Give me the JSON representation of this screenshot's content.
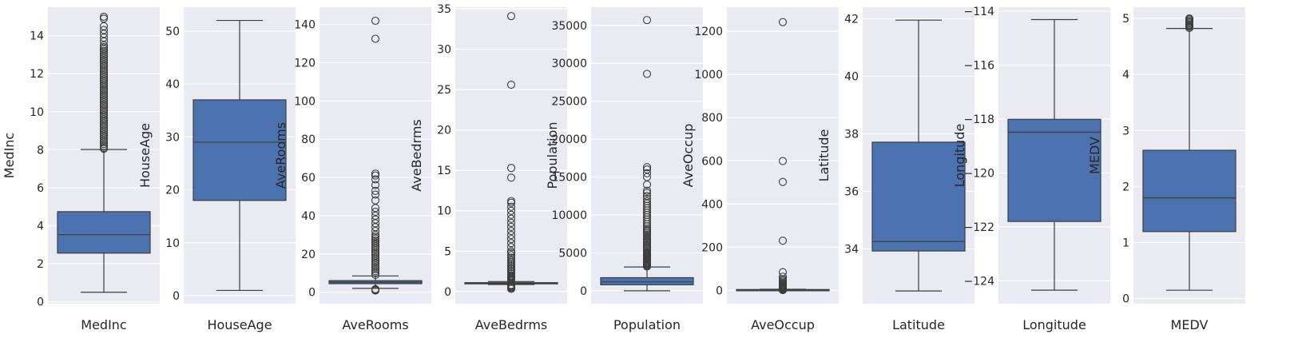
{
  "chart_data": [
    {
      "type": "box",
      "ylabel": "MedInc",
      "xlabel": "MedInc",
      "ylim": [
        -0.1,
        15.5
      ],
      "yticks": [
        0,
        2,
        4,
        6,
        8,
        10,
        12,
        14
      ],
      "whisker_low": 0.5,
      "q1": 2.56,
      "median": 3.53,
      "q3": 4.74,
      "whisker_high": 8.01,
      "outliers": [
        8.05,
        8.1,
        8.2,
        8.3,
        8.4,
        8.5,
        8.6,
        8.7,
        8.8,
        8.9,
        9.0,
        9.1,
        9.2,
        9.3,
        9.4,
        9.5,
        9.6,
        9.7,
        9.8,
        9.9,
        10.0,
        10.1,
        10.2,
        10.3,
        10.4,
        10.5,
        10.6,
        10.7,
        10.8,
        10.9,
        11.0,
        11.1,
        11.2,
        11.3,
        11.4,
        11.5,
        11.6,
        11.7,
        11.8,
        11.9,
        12.0,
        12.1,
        12.2,
        12.3,
        12.4,
        12.5,
        12.6,
        12.7,
        12.8,
        12.9,
        13.0,
        13.1,
        13.2,
        13.3,
        13.4,
        13.5,
        13.7,
        13.9,
        14.1,
        14.3,
        14.5,
        14.9,
        15.0
      ]
    },
    {
      "type": "box",
      "ylabel": "HouseAge",
      "xlabel": "HouseAge",
      "ylim": [
        -1.5,
        54.5
      ],
      "yticks": [
        0,
        10,
        20,
        30,
        40,
        50
      ],
      "whisker_low": 1,
      "q1": 18,
      "median": 29,
      "q3": 37,
      "whisker_high": 52,
      "outliers": []
    },
    {
      "type": "box",
      "ylabel": "AveRooms",
      "xlabel": "AveRooms",
      "ylim": [
        -6,
        149
      ],
      "yticks": [
        0,
        20,
        40,
        60,
        80,
        100,
        120,
        140
      ],
      "whisker_low": 2.0,
      "q1": 4.44,
      "median": 5.23,
      "q3": 6.05,
      "whisker_high": 8.5,
      "outliers": [
        0.85,
        1.0,
        1.2,
        1.4,
        1.6,
        9,
        10,
        11,
        12,
        13,
        14,
        15,
        16,
        17,
        18,
        19,
        20,
        21,
        22,
        23,
        24,
        25,
        26,
        27,
        28,
        29,
        30,
        32,
        34,
        36,
        38,
        40,
        42,
        44,
        48,
        51,
        53,
        56,
        59,
        61,
        62,
        132.5,
        141.9
      ]
    },
    {
      "type": "box",
      "ylabel": "AveBedrms",
      "xlabel": "AveBedrms",
      "ylim": [
        -1.5,
        35.2
      ],
      "yticks": [
        0,
        5,
        10,
        15,
        20,
        25,
        30,
        35
      ],
      "whisker_low": 0.87,
      "q1": 1.01,
      "median": 1.05,
      "q3": 1.1,
      "whisker_high": 1.24,
      "outliers": [
        0.33,
        0.45,
        0.55,
        0.65,
        0.75,
        0.82,
        1.3,
        1.4,
        1.5,
        1.6,
        1.7,
        1.8,
        1.9,
        2.0,
        2.2,
        2.4,
        2.6,
        2.8,
        3.0,
        3.2,
        3.4,
        3.6,
        3.8,
        4.0,
        4.2,
        4.5,
        4.8,
        5.0,
        5.5,
        6.0,
        6.5,
        7.0,
        7.5,
        8.0,
        8.5,
        9.0,
        9.5,
        10.0,
        10.5,
        11.0,
        11.2,
        14.1,
        15.3,
        25.6,
        34.1
      ]
    },
    {
      "type": "box",
      "ylabel": "Population",
      "xlabel": "Population",
      "ylim": [
        -1700,
        37400
      ],
      "yticks": [
        0,
        5000,
        10000,
        15000,
        20000,
        25000,
        30000,
        35000
      ],
      "whisker_low": 3,
      "q1": 787,
      "median": 1166,
      "q3": 1725,
      "whisker_high": 3132,
      "outliers": [
        3200,
        3300,
        3400,
        3500,
        3600,
        3700,
        3800,
        3900,
        4000,
        4100,
        4200,
        4300,
        4400,
        4500,
        4600,
        4700,
        4800,
        4900,
        5000,
        5200,
        5400,
        5600,
        5800,
        6000,
        6200,
        6400,
        6600,
        6800,
        7000,
        7200,
        7400,
        7600,
        7800,
        8000,
        8200,
        8500,
        8800,
        9100,
        9400,
        9700,
        10000,
        10300,
        10600,
        10900,
        11200,
        11500,
        11800,
        12100,
        12500,
        12900,
        13200,
        14000,
        15000,
        15500,
        16000,
        16300,
        28600,
        35700
      ]
    },
    {
      "type": "box",
      "ylabel": "AveOccup",
      "xlabel": "AveOccup",
      "ylim": [
        -62,
        1312
      ],
      "yticks": [
        0,
        200,
        400,
        600,
        800,
        1000,
        1200
      ],
      "whisker_low": 1.2,
      "q1": 2.43,
      "median": 2.82,
      "q3": 3.28,
      "whisker_high": 4.6,
      "outliers": [
        0.7,
        1.0,
        5,
        6,
        7,
        8,
        9,
        10,
        12,
        14,
        16,
        18,
        20,
        23,
        26,
        30,
        34,
        40,
        46,
        52,
        63,
        84,
        230,
        502,
        599,
        1243
      ]
    },
    {
      "type": "box",
      "ylabel": "Latitude",
      "xlabel": "Latitude",
      "ylim": [
        32.1,
        42.4
      ],
      "yticks": [
        34,
        36,
        38,
        40,
        42
      ],
      "whisker_low": 32.54,
      "q1": 33.93,
      "median": 34.26,
      "q3": 37.71,
      "whisker_high": 41.95,
      "outliers": []
    },
    {
      "type": "box",
      "ylabel": "Longitude",
      "xlabel": "Longitude",
      "ylim": [
        -124.85,
        -113.85
      ],
      "yticks": [
        -124,
        -122,
        -120,
        -118,
        -116,
        -114
      ],
      "whisker_low": -124.35,
      "q1": -121.8,
      "median": -118.49,
      "q3": -118.01,
      "whisker_high": -114.31,
      "outliers": []
    },
    {
      "type": "box",
      "ylabel": "MEDV",
      "xlabel": "MEDV",
      "ylim": [
        -0.09,
        5.2
      ],
      "yticks": [
        0,
        1,
        2,
        3,
        4,
        5
      ],
      "whisker_low": 0.15,
      "q1": 1.196,
      "median": 1.797,
      "q3": 2.647,
      "whisker_high": 4.82,
      "outliers": [
        4.83,
        4.85,
        4.87,
        4.89,
        4.91,
        4.93,
        4.95,
        4.97,
        4.99,
        5.0
      ]
    }
  ],
  "colors": {
    "panel_bg": "#eaeaf2",
    "grid": "#ffffff",
    "box_fill": "#4c72b0",
    "line": "#3d3d3d",
    "text": "#262626"
  }
}
